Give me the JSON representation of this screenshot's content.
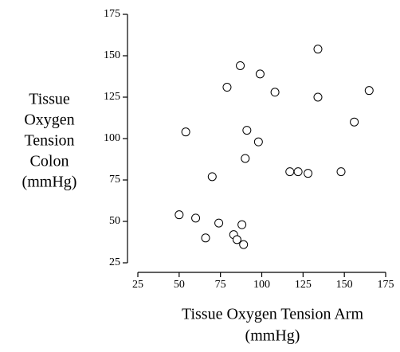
{
  "chart_data": {
    "type": "scatter",
    "x_label": [
      "Tissue Oxygen Tension Arm",
      "(mmHg)"
    ],
    "y_label": [
      "Tissue",
      "Oxygen",
      "Tension",
      "Colon",
      "(mmHg)"
    ],
    "x": [
      134,
      87,
      99,
      79,
      108,
      134,
      165,
      156,
      54,
      91,
      98,
      90,
      70,
      117,
      122,
      128,
      148,
      50,
      60,
      74,
      88,
      66,
      83,
      85,
      89
    ],
    "values": [
      154,
      144,
      139,
      131,
      128,
      125,
      129,
      110,
      104,
      105,
      98,
      88,
      77,
      80,
      80,
      79,
      80,
      54,
      52,
      49,
      48,
      40,
      42,
      39,
      36
    ],
    "color": "#000000",
    "xlim": [
      25,
      175
    ],
    "xticks": [
      25,
      50,
      75,
      100,
      125,
      150,
      175
    ],
    "ylim": [
      25,
      175
    ],
    "yticks": [
      25,
      50,
      75,
      100,
      125,
      150,
      175
    ]
  }
}
